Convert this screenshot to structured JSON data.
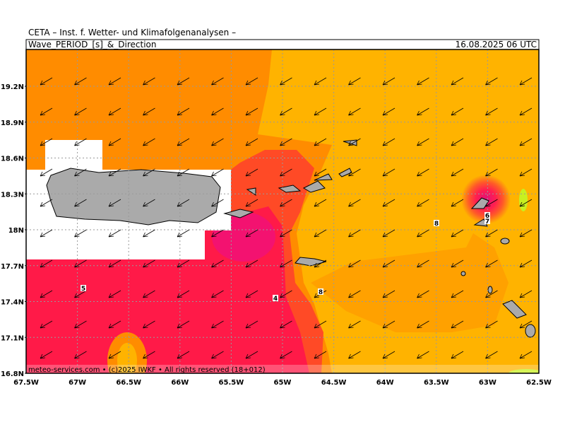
{
  "header": {
    "title": "CETA – Inst. f. Wetter- und Klimafolgenanalysen –",
    "subtitle": "Wave_PERIOD_[s]_&_Direction",
    "timestamp": "16.08.2025 06 UTC"
  },
  "map": {
    "lat_labels": [
      "19.2N",
      "18.9N",
      "18.6N",
      "18.3N",
      "18N",
      "17.7N",
      "17.4N",
      "17.1N",
      "16.8N"
    ],
    "lon_labels": [
      "67.5W",
      "67W",
      "66.5W",
      "66W",
      "65.5W",
      "65W",
      "64.5W",
      "64W",
      "63.5W",
      "63W",
      "62.5W"
    ],
    "contour_labels": [
      "5",
      "4",
      "8",
      "8",
      "6",
      "7"
    ]
  },
  "footer": "meteo-services.com • (c)2025 IWKF • All rights reserved (18+012)"
}
